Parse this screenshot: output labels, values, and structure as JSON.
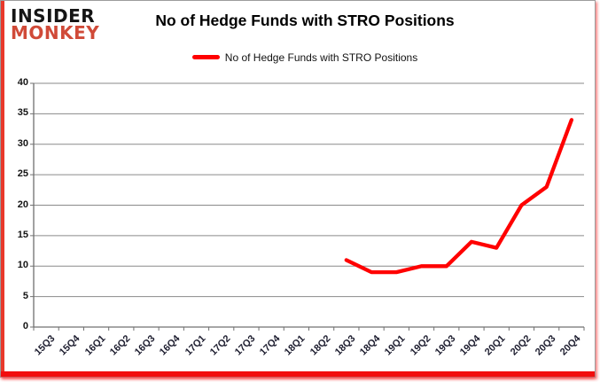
{
  "logo": {
    "line1": "INSIDER",
    "line2": "MONKEY"
  },
  "title": "No of Hedge Funds with STRO Positions",
  "legend": {
    "label": "No of Hedge Funds with STRO Positions"
  },
  "colors": {
    "series_red": "#ff0000",
    "logo_red": "#d04a38",
    "logo_black": "#141414",
    "gridline_gray": "#8a8a8a",
    "axis_gray": "#707070",
    "accent_left_red": "#e8392b",
    "accent_bottom_red": "#f20d0d",
    "frame_border_gray": "#9c9c9c"
  },
  "chart_data": {
    "type": "line",
    "title": "No of Hedge Funds with STRO Positions",
    "categories": [
      "15Q3",
      "15Q4",
      "16Q1",
      "16Q2",
      "16Q3",
      "16Q4",
      "17Q1",
      "17Q2",
      "17Q3",
      "17Q4",
      "18Q1",
      "18Q2",
      "18Q3",
      "18Q4",
      "19Q1",
      "19Q2",
      "19Q3",
      "19Q4",
      "20Q1",
      "20Q2",
      "20Q3",
      "20Q4"
    ],
    "series": [
      {
        "name": "No of Hedge Funds with STRO Positions",
        "color": "#ff0000",
        "values": [
          null,
          null,
          null,
          null,
          null,
          null,
          null,
          null,
          null,
          null,
          null,
          null,
          11,
          9,
          9,
          10,
          10,
          14,
          13,
          20,
          23,
          34
        ]
      }
    ],
    "ylim": [
      0,
      40
    ],
    "yticks": [
      0,
      5,
      10,
      15,
      20,
      25,
      30,
      35,
      40
    ],
    "grid": true,
    "legend_position": "top-center"
  }
}
